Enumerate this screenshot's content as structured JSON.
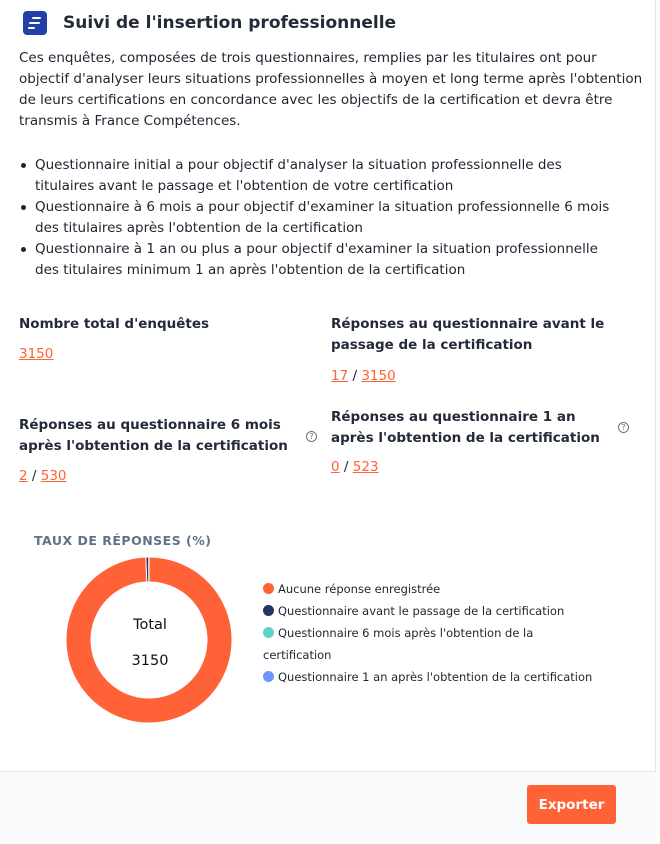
{
  "header": {
    "title": "Suivi de l'insertion professionnelle",
    "icon": "survey-logo-icon"
  },
  "intro": "Ces enquêtes, composées de trois questionnaires, remplies par les titulaires ont pour objectif d'analyser leurs situations professionnelles à moyen et long terme après l'obtention de leurs certifications en concordance avec les objectifs de la certification et devra être transmis à France Compétences.",
  "bullets": [
    "Questionnaire initial a pour objectif d'analyser la situation professionnelle des titulaires avant le passage et l'obtention de votre certification",
    "Questionnaire à 6 mois a pour objectif d'examiner la situation professionnelle 6 mois des titulaires après l'obtention de la certification",
    "Questionnaire à 1 an ou plus a pour objectif d'examiner la situation professionnelle des titulaires minimum 1 an après l'obtention de la certification"
  ],
  "stats": {
    "total": {
      "label": "Nombre total d'enquêtes",
      "value": "3150"
    },
    "before": {
      "label": "Réponses au questionnaire avant le passage de la certification",
      "answered": "17",
      "total": "3150"
    },
    "six_months": {
      "label": "Réponses au questionnaire 6 mois après l'obtention de la certification",
      "answered": "2",
      "total": "530"
    },
    "one_year": {
      "label": "Réponses au questionnaire 1 an après l'obtention de la certification",
      "answered": "0",
      "total": "523"
    },
    "separator": "/"
  },
  "chart_data": {
    "type": "pie",
    "title": "TAUX DE RÉPONSES (%)",
    "center_label": "Total",
    "center_value": "3150",
    "legend_placement": "right",
    "categories": [
      "Aucune réponse enregistrée",
      "Questionnaire avant le passage de la certification",
      "Questionnaire 6 mois après l'obtention de la certification",
      "Questionnaire 1 an après l'obtention de la certification"
    ],
    "values": [
      3131,
      17,
      2,
      0
    ],
    "colors": [
      "#ff6236",
      "#2b3360",
      "#5fd3c1",
      "#6f95ff"
    ]
  },
  "footer": {
    "export_label": "Exporter"
  }
}
